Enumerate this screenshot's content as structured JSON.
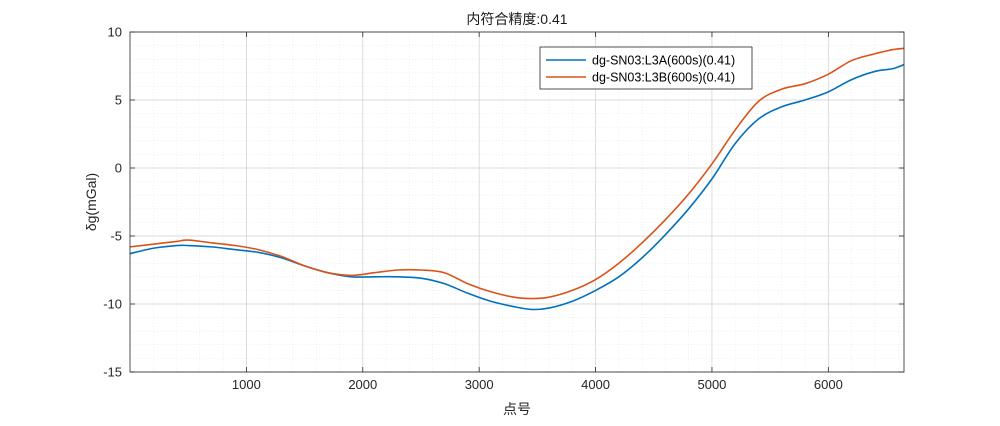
{
  "chart_data": {
    "type": "line",
    "title": "内符合精度:0.41",
    "xlabel": "点号",
    "ylabel": "δg(mGal)",
    "xlim": [
      0,
      6650
    ],
    "ylim": [
      -15,
      10
    ],
    "xticks": [
      1000,
      2000,
      3000,
      4000,
      5000,
      6000
    ],
    "yticks": [
      -15,
      -10,
      -5,
      0,
      5,
      10
    ],
    "xtick_labels": [
      "1000",
      "2000",
      "3000",
      "4000",
      "5000",
      "6000"
    ],
    "ytick_labels": [
      "-15",
      "-10",
      "-5",
      "0",
      "5",
      "10"
    ],
    "grid": true,
    "minor_grid": true,
    "legend_position": "top-right",
    "series": [
      {
        "name": "dg-SN03:L3A(600s)(0.41)",
        "color": "#0072BD",
        "x": [
          0,
          200,
          400,
          500,
          700,
          900,
          1100,
          1300,
          1500,
          1700,
          1900,
          2100,
          2300,
          2500,
          2700,
          2900,
          3100,
          3300,
          3450,
          3600,
          3800,
          4000,
          4200,
          4400,
          4600,
          4800,
          5000,
          5200,
          5400,
          5600,
          5800,
          6000,
          6200,
          6400,
          6550,
          6650
        ],
        "y": [
          -6.3,
          -5.9,
          -5.7,
          -5.7,
          -5.8,
          -6.0,
          -6.2,
          -6.6,
          -7.2,
          -7.7,
          -8.0,
          -8.0,
          -8.0,
          -8.1,
          -8.5,
          -9.2,
          -9.8,
          -10.2,
          -10.4,
          -10.3,
          -9.8,
          -9.0,
          -8.0,
          -6.6,
          -4.9,
          -3.0,
          -0.8,
          1.8,
          3.6,
          4.5,
          5.0,
          5.6,
          6.5,
          7.1,
          7.3,
          7.6
        ]
      },
      {
        "name": "dg-SN03:L3B(600s)(0.41)",
        "color": "#D95319",
        "x": [
          0,
          200,
          400,
          500,
          700,
          900,
          1100,
          1300,
          1500,
          1700,
          1900,
          2100,
          2300,
          2500,
          2700,
          2900,
          3100,
          3300,
          3450,
          3600,
          3800,
          4000,
          4200,
          4400,
          4600,
          4800,
          5000,
          5200,
          5400,
          5600,
          5800,
          6000,
          6200,
          6400,
          6550,
          6650
        ],
        "y": [
          -5.8,
          -5.6,
          -5.4,
          -5.3,
          -5.5,
          -5.7,
          -6.0,
          -6.5,
          -7.2,
          -7.7,
          -7.9,
          -7.7,
          -7.5,
          -7.5,
          -7.7,
          -8.5,
          -9.1,
          -9.5,
          -9.6,
          -9.5,
          -9.0,
          -8.2,
          -7.0,
          -5.5,
          -3.8,
          -1.9,
          0.3,
          2.8,
          4.9,
          5.8,
          6.2,
          6.9,
          7.9,
          8.4,
          8.7,
          8.8
        ]
      }
    ]
  }
}
